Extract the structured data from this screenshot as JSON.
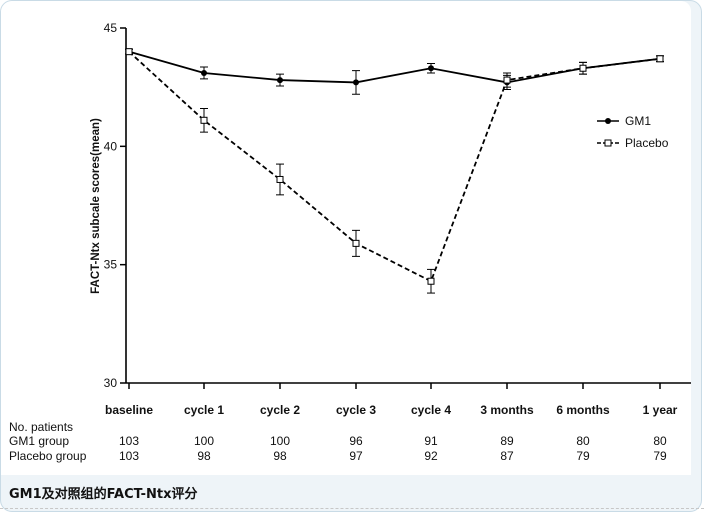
{
  "caption": "GM1及对照组的FACT-Ntx评分",
  "chart_data": {
    "type": "line",
    "ylabel": "FACT-Ntx subcale scores(mean)",
    "xlabel": "",
    "ylim": [
      30,
      45
    ],
    "yticks": [
      30,
      35,
      40,
      45
    ],
    "categories": [
      "baseline",
      "cycle 1",
      "cycle 2",
      "cycle 3",
      "cycle 4",
      "3 months",
      "6 months",
      "1 year"
    ],
    "legend_position": "right",
    "grid": false,
    "series": [
      {
        "name": "GM1",
        "style": "solid",
        "marker": "filled-circle",
        "values": [
          44.0,
          43.1,
          42.8,
          42.7,
          43.3,
          42.7,
          43.3,
          43.7
        ],
        "error": [
          0.1,
          0.25,
          0.25,
          0.5,
          0.2,
          0.3,
          0.25,
          0.12
        ]
      },
      {
        "name": "Placebo",
        "style": "dashed",
        "marker": "open-square",
        "values": [
          44.0,
          41.1,
          38.6,
          35.9,
          34.3,
          42.8,
          43.3,
          43.7
        ],
        "error": [
          0.1,
          0.5,
          0.65,
          0.55,
          0.5,
          0.3,
          0.25,
          0.12
        ]
      }
    ],
    "patients": {
      "title": "No. patients",
      "rows": [
        {
          "label": "GM1 group",
          "values": [
            "103",
            "100",
            "100",
            "96",
            "91",
            "89",
            "80",
            "80"
          ]
        },
        {
          "label": "Placebo group",
          "values": [
            "103",
            "98",
            "98",
            "97",
            "92",
            "87",
            "79",
            "79"
          ]
        }
      ]
    }
  }
}
